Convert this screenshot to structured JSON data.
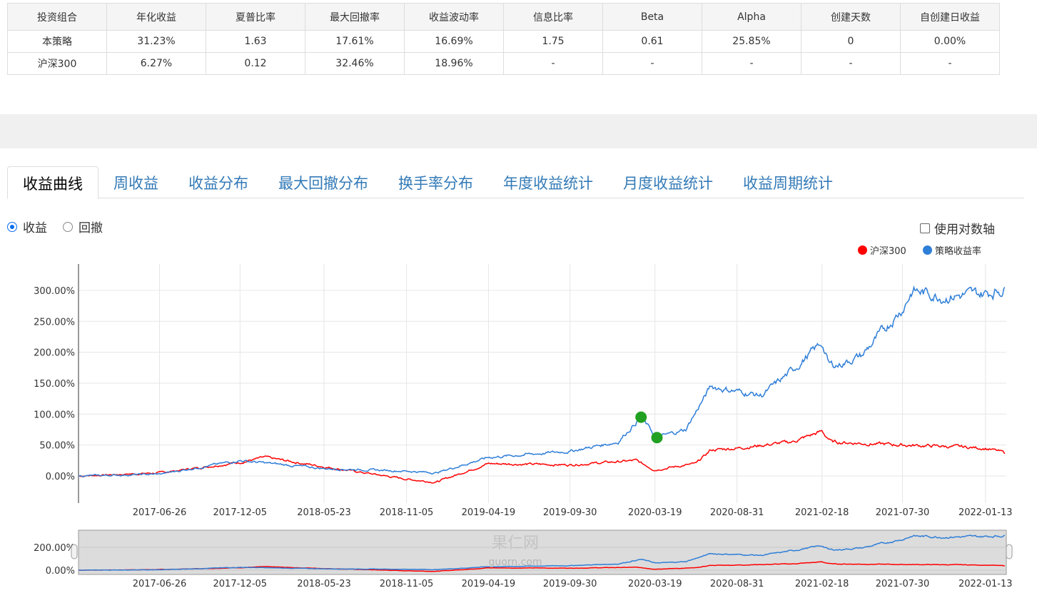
{
  "stats": {
    "headers": [
      "投资组合",
      "年化收益",
      "夏普比率",
      "最大回撤率",
      "收益波动率",
      "信息比率",
      "Beta",
      "Alpha",
      "创建天数",
      "自创建日收益"
    ],
    "rows": [
      [
        "本策略",
        "31.23%",
        "1.63",
        "17.61%",
        "16.69%",
        "1.75",
        "0.61",
        "25.85%",
        "0",
        "0.00%"
      ],
      [
        "沪深300",
        "6.27%",
        "0.12",
        "32.46%",
        "18.96%",
        "-",
        "-",
        "-",
        "-",
        "-"
      ]
    ]
  },
  "tabs": [
    "收益曲线",
    "周收益",
    "收益分布",
    "最大回撤分布",
    "换手率分布",
    "年度收益统计",
    "月度收益统计",
    "收益周期统计"
  ],
  "mode": {
    "return_label": "收益",
    "drawdown_label": "回撤",
    "selected": "收益"
  },
  "log_axis": {
    "label": "使用对数轴",
    "checked": false
  },
  "watermark": [
    "果仁网",
    "guorn.com"
  ],
  "chart_data": {
    "type": "line",
    "legend_position": "top-right",
    "grid": true,
    "x_range": [
      "2017-01-14",
      "2022-02-24"
    ],
    "ylim": [
      -40,
      340
    ],
    "y_ticks": [
      "0.00%",
      "50.00%",
      "100.00%",
      "150.00%",
      "200.00%",
      "250.00%",
      "300.00%"
    ],
    "navigator_y_ticks": [
      "0.00%",
      "200.00%"
    ],
    "x_ticks": [
      "2017-06-26",
      "2017-12-05",
      "2018-05-23",
      "2018-11-05",
      "2019-04-19",
      "2019-09-30",
      "2020-03-19",
      "2020-08-31",
      "2021-02-18",
      "2021-07-30",
      "2022-01-13"
    ],
    "series": [
      {
        "name": "沪深300",
        "color": "#ff0000",
        "points": [
          [
            "2017-01-14",
            0
          ],
          [
            "2017-06-26",
            5
          ],
          [
            "2017-12-05",
            22
          ],
          [
            "2018-01-24",
            30
          ],
          [
            "2018-05-23",
            15
          ],
          [
            "2018-11-05",
            -5
          ],
          [
            "2019-01-04",
            -10
          ],
          [
            "2019-04-19",
            20
          ],
          [
            "2019-09-30",
            18
          ],
          [
            "2020-02-10",
            25
          ],
          [
            "2020-03-19",
            10
          ],
          [
            "2020-06-10",
            20
          ],
          [
            "2020-07-10",
            42
          ],
          [
            "2020-08-31",
            45
          ],
          [
            "2020-12-20",
            55
          ],
          [
            "2021-02-18",
            72
          ],
          [
            "2021-03-10",
            55
          ],
          [
            "2021-07-30",
            50
          ],
          [
            "2021-10-20",
            48
          ],
          [
            "2022-01-13",
            45
          ],
          [
            "2022-02-24",
            37
          ]
        ]
      },
      {
        "name": "策略收益率",
        "color": "#2f7ed8",
        "points": [
          [
            "2017-01-14",
            0
          ],
          [
            "2017-06-26",
            3
          ],
          [
            "2017-12-05",
            25
          ],
          [
            "2018-05-23",
            12
          ],
          [
            "2018-11-05",
            8
          ],
          [
            "2019-01-04",
            5
          ],
          [
            "2019-04-19",
            30
          ],
          [
            "2019-09-30",
            40
          ],
          [
            "2020-01-05",
            55
          ],
          [
            "2020-02-20",
            95
          ],
          [
            "2020-03-23",
            62
          ],
          [
            "2020-05-20",
            75
          ],
          [
            "2020-07-10",
            145
          ],
          [
            "2020-08-31",
            137
          ],
          [
            "2020-10-20",
            130
          ],
          [
            "2020-12-20",
            170
          ],
          [
            "2021-02-18",
            215
          ],
          [
            "2021-03-05",
            180
          ],
          [
            "2021-03-25",
            180
          ],
          [
            "2021-05-10",
            195
          ],
          [
            "2021-07-30",
            270
          ],
          [
            "2021-08-20",
            300
          ],
          [
            "2021-10-20",
            290
          ],
          [
            "2022-01-13",
            295
          ],
          [
            "2022-02-24",
            303
          ]
        ]
      }
    ],
    "markers": [
      {
        "date": "2020-02-20",
        "value": 95,
        "color": "#22a022"
      },
      {
        "date": "2020-03-23",
        "value": 62,
        "color": "#22a022"
      }
    ]
  }
}
